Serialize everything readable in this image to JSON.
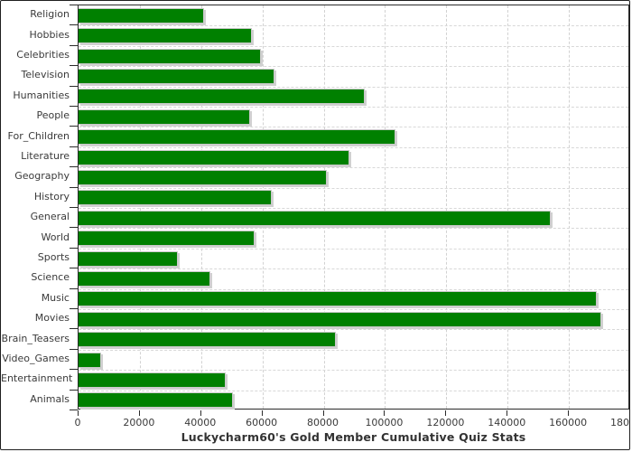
{
  "window": {
    "background": "#ffffff",
    "frame_border_color": "#1f1f1f"
  },
  "chart_data": {
    "type": "bar",
    "orientation": "horizontal",
    "title": "Luckycharm60's Gold Member Cumulative Quiz Stats",
    "categories": [
      "Religion",
      "Hobbies",
      "Celebrities",
      "Television",
      "Humanities",
      "People",
      "For_Children",
      "Literature",
      "Geography",
      "History",
      "General",
      "World",
      "Sports",
      "Science",
      "Music",
      "Movies",
      "Brain_Teasers",
      "Video_Games",
      "Entertainment",
      "Animals"
    ],
    "values": [
      41000,
      56500,
      59500,
      64000,
      93500,
      56000,
      103500,
      88500,
      81000,
      63000,
      154000,
      57500,
      32500,
      43000,
      169000,
      170500,
      84000,
      7500,
      48000,
      50500
    ],
    "xlabel": "",
    "ylabel": "",
    "xlim": [
      0,
      180000
    ],
    "x_ticks": [
      0,
      20000,
      40000,
      60000,
      80000,
      100000,
      120000,
      140000,
      160000,
      180000
    ],
    "x_tick_labels": [
      "0",
      "20000",
      "40000",
      "60000",
      "80000",
      "100000",
      "120000",
      "140000",
      "160000",
      "180000"
    ],
    "grid": "dashed, vertical at value ticks and horizontal at category boundaries",
    "legend": "none",
    "bar_color": "#008000",
    "bar_border_color": "#c9c9c9",
    "bar_shadow_color": "#d0d0d0",
    "grid_color": "#d2d2d2",
    "axis_color": "#2b2b2b",
    "tick_label_color": "#3a3a3a",
    "title_color": "#333333"
  }
}
